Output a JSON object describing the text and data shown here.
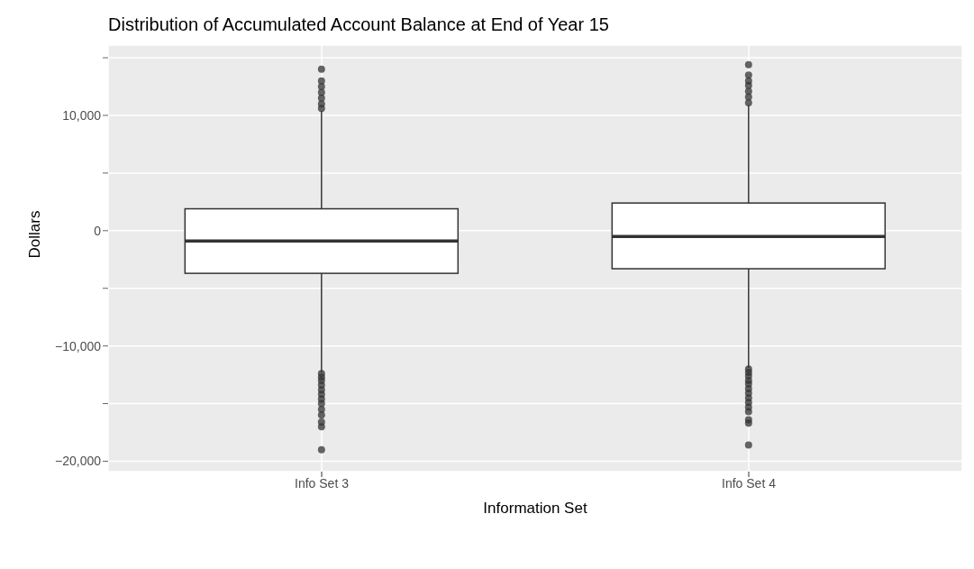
{
  "chart_data": {
    "type": "box",
    "title": "Distribution of Accumulated Account Balance at End of Year 15",
    "xlabel": "Information Set",
    "ylabel": "Dollars",
    "categories": [
      "Info Set 3",
      "Info Set 4"
    ],
    "boxes": [
      {
        "low": -12300,
        "q1": -3700,
        "median": -900,
        "q3": 1900,
        "high": 10400,
        "outliers": [
          10600,
          11000,
          11500,
          12000,
          12500,
          13000,
          14000,
          -12400,
          -12700,
          -13000,
          -13400,
          -13800,
          -14200,
          -14600,
          -15000,
          -15500,
          -16000,
          -16600,
          -17000,
          -19000
        ]
      },
      {
        "low": -11900,
        "q1": -3300,
        "median": -500,
        "q3": 2400,
        "high": 10900,
        "outliers": [
          11100,
          11600,
          12100,
          12600,
          13000,
          13500,
          14400,
          -12000,
          -12300,
          -12600,
          -13000,
          -13300,
          -13700,
          -14100,
          -14500,
          -14900,
          -15300,
          -15700,
          -16400,
          -16700,
          -18600
        ]
      }
    ],
    "color": "#333333",
    "ylim": [
      -20900,
      16100
    ],
    "yticks": [
      {
        "value": -20000,
        "label": "−20,000"
      },
      {
        "value": -15000,
        "label": null
      },
      {
        "value": -10000,
        "label": "−10,000"
      },
      {
        "value": -5000,
        "label": null
      },
      0,
      {
        "value": 5000,
        "label": null
      },
      {
        "value": 10000,
        "label": "10,000"
      },
      {
        "value": 15000,
        "label": null
      }
    ],
    "grid": true
  }
}
